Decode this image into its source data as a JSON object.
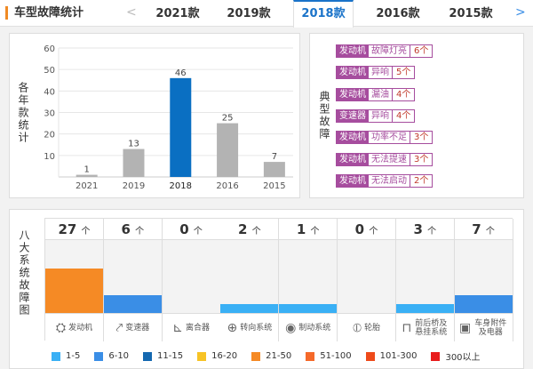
{
  "header": {
    "title": "车型故障统计",
    "prev": "<",
    "next": ">",
    "tabs": [
      "2021款",
      "2019款",
      "2018款",
      "2016款",
      "2015款"
    ],
    "active": 2
  },
  "year_chart": {
    "ylabel": "各年款统计"
  },
  "chart_data": {
    "type": "bar",
    "title": "",
    "xlabel": "",
    "ylabel": "各年款统计",
    "categories": [
      "2021",
      "2019",
      "2018",
      "2016",
      "2015"
    ],
    "values": [
      1,
      13,
      46,
      25,
      7
    ],
    "highlight": "2018",
    "ylim": [
      0,
      60
    ],
    "yticks": [
      10,
      20,
      30,
      40,
      50,
      60
    ],
    "colors": {
      "normal": "#b3b3b3",
      "highlight": "#0a6fc2"
    },
    "grid": true
  },
  "typical": {
    "label": "典型故障",
    "items": [
      {
        "cat": "发动机",
        "desc": "故障灯亮",
        "count": "6个"
      },
      {
        "cat": "发动机",
        "desc": "异响",
        "count": "5个"
      },
      {
        "cat": "发动机",
        "desc": "漏油",
        "count": "4个"
      },
      {
        "cat": "变速器",
        "desc": "异响",
        "count": "4个"
      },
      {
        "cat": "发动机",
        "desc": "功率不足",
        "count": "3个"
      },
      {
        "cat": "发动机",
        "desc": "无法提速",
        "count": "3个"
      },
      {
        "cat": "发动机",
        "desc": "无法启动",
        "count": "2个"
      }
    ]
  },
  "systems": {
    "label": "八大系统故障图",
    "unit": "个",
    "items": [
      {
        "name": "发动机",
        "count": 27,
        "icon": "engine-icon",
        "glyph": "⛭"
      },
      {
        "name": "变速器",
        "count": 6,
        "icon": "gear-shift-icon",
        "glyph": "⤤"
      },
      {
        "name": "离合器",
        "count": 0,
        "icon": "clutch-pedal-icon",
        "glyph": "⊾"
      },
      {
        "name": "转向系统",
        "count": 2,
        "icon": "steering-wheel-icon",
        "glyph": "⊕"
      },
      {
        "name": "制动系统",
        "count": 1,
        "icon": "brake-disc-icon",
        "glyph": "◉"
      },
      {
        "name": "轮胎",
        "count": 0,
        "icon": "tire-icon",
        "glyph": "⦶"
      },
      {
        "name": "前后桥及悬挂系统",
        "count": 3,
        "icon": "axle-icon",
        "glyph": "⊓"
      },
      {
        "name": "车身附件及电器",
        "count": 7,
        "icon": "battery-icon",
        "glyph": "▣"
      }
    ]
  },
  "legend": [
    {
      "label": "1-5",
      "color": "#3ab0f5",
      "min": 1,
      "max": 5
    },
    {
      "label": "6-10",
      "color": "#3a8ee6",
      "min": 6,
      "max": 10
    },
    {
      "label": "11-15",
      "color": "#1468b0",
      "min": 11,
      "max": 15
    },
    {
      "label": "16-20",
      "color": "#f7c325",
      "min": 16,
      "max": 20
    },
    {
      "label": "21-50",
      "color": "#f58a25",
      "min": 21,
      "max": 50
    },
    {
      "label": "51-100",
      "color": "#f5692a",
      "min": 51,
      "max": 100
    },
    {
      "label": "101-300",
      "color": "#ee4a1a",
      "min": 101,
      "max": 300
    },
    {
      "label": "300以上",
      "color": "#e81c1c",
      "min": 301,
      "max": 100000
    }
  ]
}
